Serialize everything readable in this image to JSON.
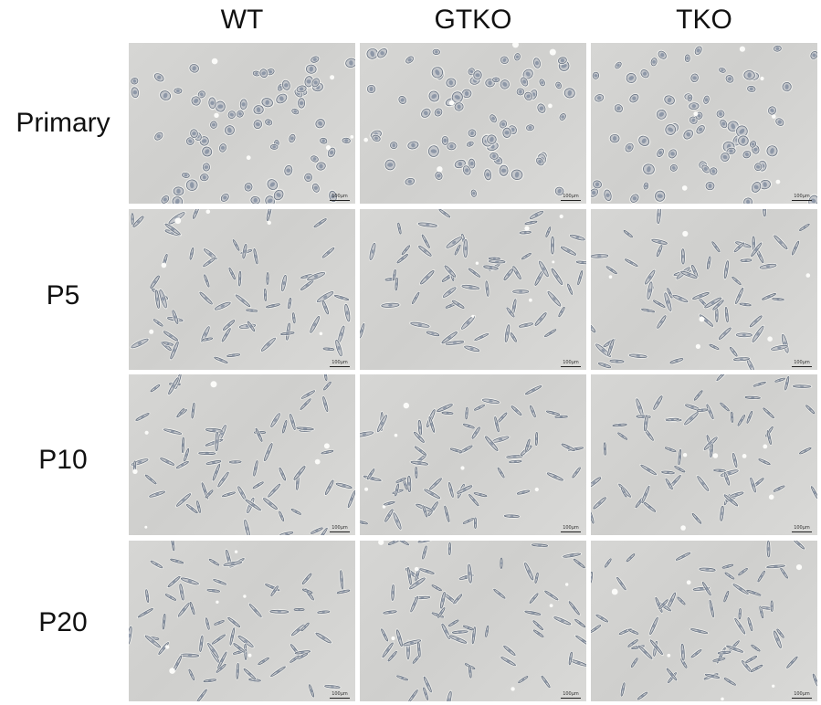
{
  "figure": {
    "columns": [
      {
        "label": "WT"
      },
      {
        "label": "GTKO"
      },
      {
        "label": "TKO"
      }
    ],
    "rows": [
      {
        "label": "Primary"
      },
      {
        "label": "P5"
      },
      {
        "label": "P10"
      },
      {
        "label": "P20"
      }
    ],
    "scale_bar_label": "100μm",
    "panel_background": "#d3d3d1",
    "cell_outline_color": "#5f6a7a",
    "cell_halo_color": "#f4f4f2"
  }
}
